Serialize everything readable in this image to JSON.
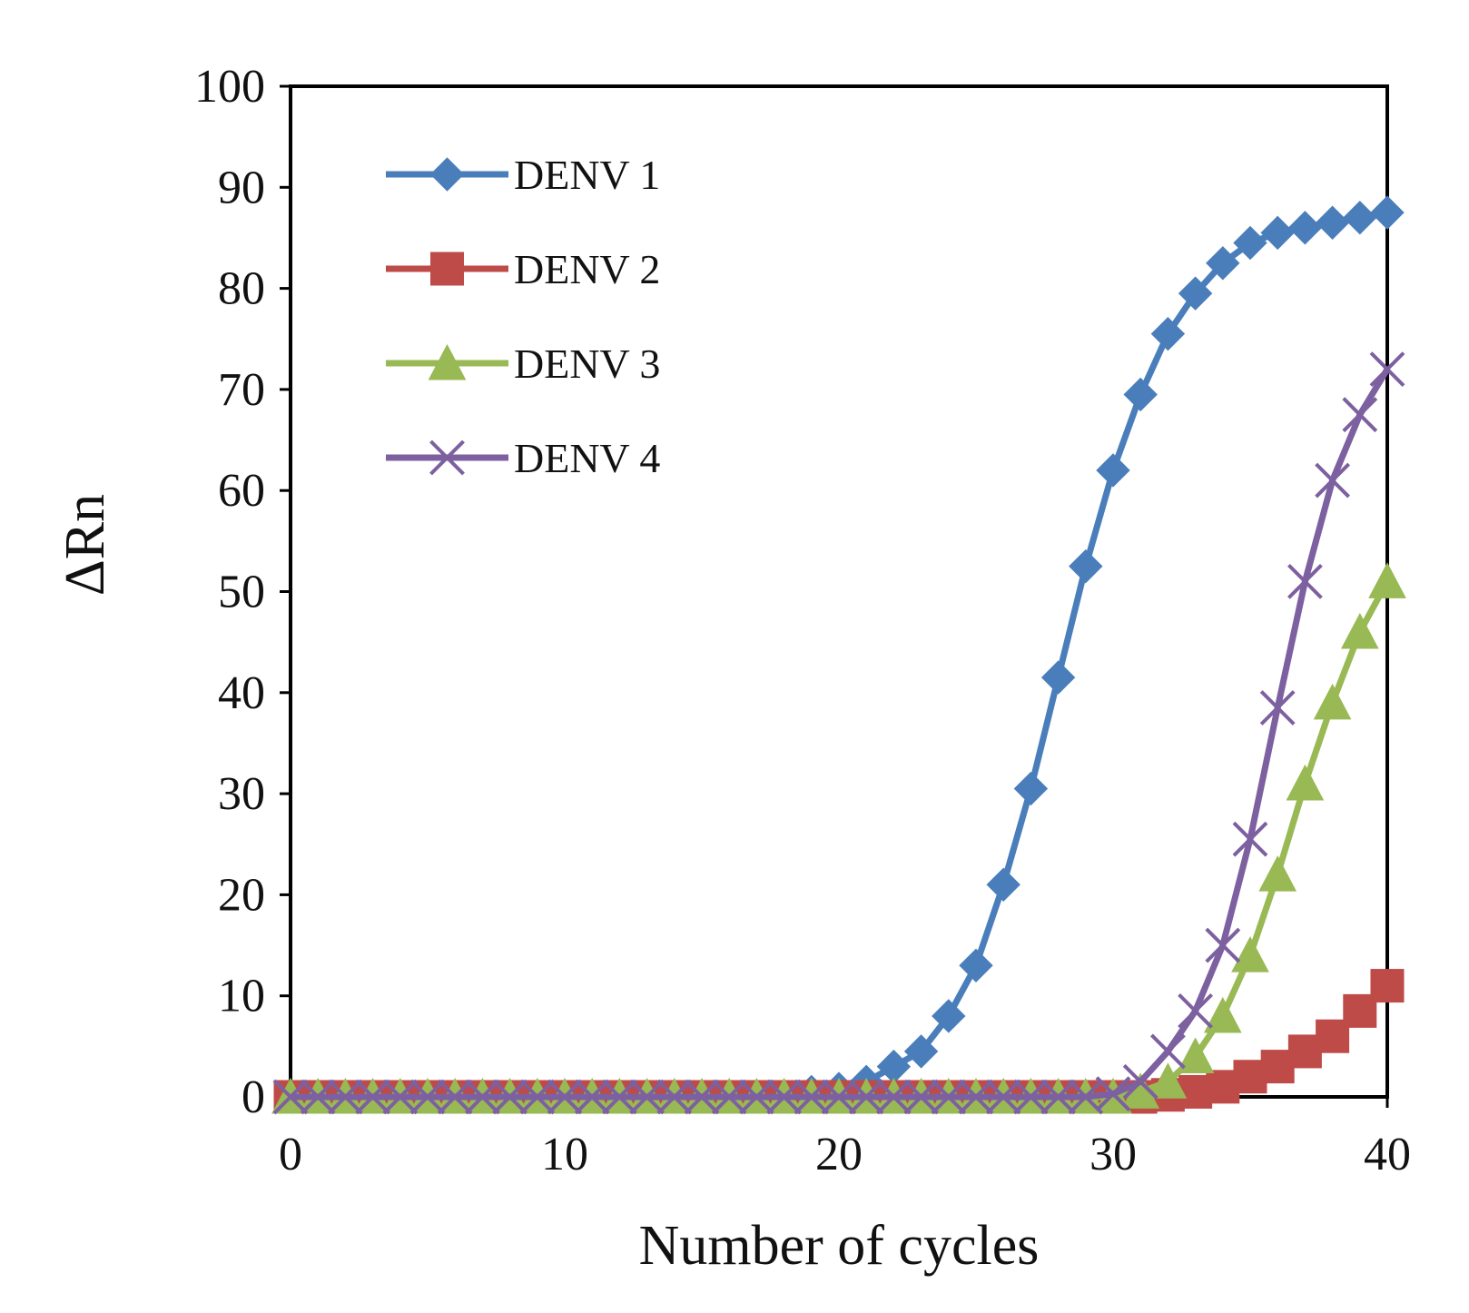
{
  "chart_data": {
    "type": "line",
    "xlabel": "Number of cycles",
    "ylabel": "ΔRn",
    "x": [
      0,
      1,
      2,
      3,
      4,
      5,
      6,
      7,
      8,
      9,
      10,
      11,
      12,
      13,
      14,
      15,
      16,
      17,
      18,
      19,
      20,
      21,
      22,
      23,
      24,
      25,
      26,
      27,
      28,
      29,
      30,
      31,
      32,
      33,
      34,
      35,
      36,
      37,
      38,
      39,
      40
    ],
    "series": [
      {
        "name": "DENV 1",
        "color": "#4a7ebb",
        "marker": "diamond",
        "values": [
          0,
          0,
          0,
          0,
          0,
          0,
          0,
          0,
          0,
          0,
          0,
          0,
          0,
          0,
          0,
          0,
          0,
          0,
          0,
          0.5,
          0.8,
          1.5,
          3,
          4.5,
          8,
          13,
          21,
          30.5,
          41.5,
          52.5,
          62,
          69.5,
          75.5,
          79.5,
          82.5,
          84.5,
          85.5,
          86,
          86.5,
          87,
          87.5
        ]
      },
      {
        "name": "DENV 2",
        "color": "#be4b48",
        "marker": "square",
        "values": [
          0,
          0,
          0,
          0,
          0,
          0,
          0,
          0,
          0,
          0,
          0,
          0,
          0,
          0,
          0,
          0,
          0,
          0,
          0,
          0,
          0,
          0,
          0,
          0,
          0,
          0,
          0,
          0,
          0,
          0,
          0,
          0,
          0.2,
          0.5,
          1,
          2,
          3,
          4.5,
          6,
          8.5,
          11
        ]
      },
      {
        "name": "DENV 3",
        "color": "#98b954",
        "marker": "triangle",
        "values": [
          0,
          0,
          0,
          0,
          0,
          0,
          0,
          0,
          0,
          0,
          0,
          0,
          0,
          0,
          0,
          0,
          0,
          0,
          0,
          0,
          0,
          0,
          0,
          0,
          0,
          0,
          0,
          0,
          0,
          0,
          0,
          0.5,
          1.5,
          4,
          8,
          14,
          22,
          31,
          39,
          46,
          51
        ]
      },
      {
        "name": "DENV 4",
        "color": "#7d60a0",
        "marker": "x",
        "values": [
          0,
          0,
          0,
          0,
          0,
          0,
          0,
          0,
          0,
          0,
          0,
          0,
          0,
          0,
          0,
          0,
          0,
          0,
          0,
          0,
          0,
          0,
          0,
          0,
          0,
          0,
          0,
          0,
          0,
          0,
          0.3,
          1.5,
          4.5,
          8.5,
          15,
          25.5,
          38.5,
          51,
          61,
          67.5,
          72
        ]
      }
    ],
    "xlim": [
      0,
      40
    ],
    "xticks": [
      0,
      10,
      20,
      30,
      40
    ],
    "ylim": [
      0,
      100
    ],
    "yticks": [
      0,
      10,
      20,
      30,
      40,
      50,
      60,
      70,
      80,
      90,
      100
    ],
    "legend": "upper left"
  }
}
